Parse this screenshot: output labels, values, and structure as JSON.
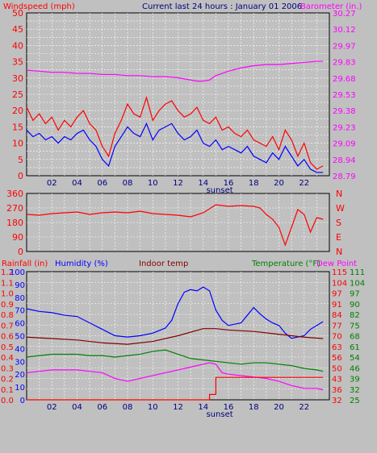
{
  "header": {
    "left_title": "Windspeed (mph)",
    "center_title": "Current last 24 hours : January 01 2006",
    "right_title": "Barometer (in.)"
  },
  "colors": {
    "bg": "#c0c0c0",
    "plot_bg": "#c0c0c0",
    "grid": "#ffffff",
    "frame": "#000000",
    "red": "#ff0000",
    "blue": "#0000ff",
    "magenta": "#ff00ff",
    "darkred": "#800000",
    "green": "#008000",
    "darkblue": "#000080"
  },
  "x_ticks": [
    "02",
    "04",
    "06",
    "08",
    "10",
    "12",
    "14",
    "16",
    "18",
    "20",
    "22"
  ],
  "sunset_label": "sunset",
  "chart_data": [
    {
      "type": "line",
      "name": "wind-barometer",
      "left_axis": {
        "label": "Windspeed (mph)",
        "ticks": [
          0,
          2.5,
          5,
          7.5,
          10,
          12.5,
          15,
          17.5,
          20,
          22.5,
          25,
          27.5,
          30,
          32.5,
          35,
          37.5,
          40,
          42.5,
          45,
          47.5,
          50
        ],
        "tick_labels": [
          "0",
          "5",
          "10",
          "15",
          "20",
          "25",
          "30",
          "35",
          "40",
          "45",
          "50"
        ],
        "ylim": [
          0,
          50
        ]
      },
      "right_axis": {
        "label": "Barometer (in.)",
        "tick_labels": [
          "28.79",
          "28.94",
          "29.09",
          "29.23",
          "29.38",
          "29.53",
          "29.68",
          "29.83",
          "29.97",
          "30.12",
          "30.27"
        ],
        "ylim": [
          28.79,
          30.27
        ]
      },
      "series": [
        {
          "name": "Windspeed (mph)",
          "color": "red",
          "axis": "left",
          "x": [
            0,
            0.5,
            1,
            1.5,
            2,
            2.5,
            3,
            3.5,
            4,
            4.5,
            5,
            5.5,
            6,
            6.5,
            7,
            7.5,
            8,
            8.5,
            9,
            9.5,
            10,
            10.5,
            11,
            11.5,
            12,
            12.5,
            13,
            13.5,
            14,
            14.5,
            15,
            15.5,
            16,
            16.5,
            17,
            17.5,
            18,
            18.5,
            19,
            19.5,
            20,
            20.5,
            21,
            21.5,
            22,
            22.5,
            23,
            23.5
          ],
          "values": [
            21,
            17,
            19,
            16,
            18,
            14,
            17,
            15,
            18,
            20,
            16,
            14,
            9,
            6,
            13,
            17,
            22,
            19,
            18,
            24,
            17,
            20,
            22,
            23,
            20,
            18,
            19,
            21,
            17,
            16,
            18,
            14,
            15,
            13,
            12,
            14,
            11,
            10,
            9,
            12,
            8,
            14,
            11,
            6,
            10,
            4,
            2,
            3
          ]
        },
        {
          "name": "Windspeed (mph)",
          "color": "blue",
          "axis": "left",
          "x": [
            0,
            0.5,
            1,
            1.5,
            2,
            2.5,
            3,
            3.5,
            4,
            4.5,
            5,
            5.5,
            6,
            6.5,
            7,
            7.5,
            8,
            8.5,
            9,
            9.5,
            10,
            10.5,
            11,
            11.5,
            12,
            12.5,
            13,
            13.5,
            14,
            14.5,
            15,
            15.5,
            16,
            16.5,
            17,
            17.5,
            18,
            18.5,
            19,
            19.5,
            20,
            20.5,
            21,
            21.5,
            22,
            22.5,
            23,
            23.5
          ],
          "values": [
            14,
            12,
            13,
            11,
            12,
            10,
            12,
            11,
            13,
            14,
            11,
            9,
            5,
            3,
            9,
            12,
            15,
            13,
            12,
            16,
            11,
            14,
            15,
            16,
            13,
            11,
            12,
            14,
            10,
            9,
            11,
            8,
            9,
            8,
            7,
            9,
            6,
            5,
            4,
            7,
            5,
            9,
            6,
            3,
            5,
            2,
            1,
            1
          ]
        },
        {
          "name": "Barometer (in.)",
          "color": "magenta",
          "axis": "right",
          "x": [
            0,
            1,
            2,
            3,
            4,
            5,
            6,
            7,
            8,
            9,
            10,
            11,
            12,
            13,
            13.5,
            14,
            14.5,
            15,
            16,
            17,
            18,
            19,
            20,
            21,
            22,
            23,
            23.5
          ],
          "values": [
            29.75,
            29.74,
            29.73,
            29.73,
            29.72,
            29.72,
            29.71,
            29.71,
            29.7,
            29.7,
            29.69,
            29.69,
            29.68,
            29.66,
            29.65,
            29.65,
            29.66,
            29.7,
            29.74,
            29.77,
            29.79,
            29.8,
            29.8,
            29.81,
            29.82,
            29.83,
            29.83
          ]
        }
      ]
    },
    {
      "type": "line",
      "name": "wind-direction",
      "left_axis": {
        "tick_labels": [
          "0",
          "90",
          "180",
          "270",
          "360"
        ],
        "ylim": [
          0,
          360
        ]
      },
      "right_axis": {
        "tick_labels": [
          "N",
          "E",
          "S",
          "W",
          "N"
        ]
      },
      "series": [
        {
          "name": "Wind direction",
          "color": "red",
          "x": [
            0,
            1,
            2,
            3,
            4,
            5,
            6,
            7,
            8,
            9,
            10,
            11,
            12,
            13,
            14,
            15,
            16,
            17,
            18,
            18.5,
            19,
            19.5,
            20,
            20.5,
            21,
            21.5,
            22,
            22.5,
            23,
            23.5
          ],
          "values": [
            230,
            225,
            235,
            240,
            245,
            230,
            240,
            245,
            240,
            250,
            235,
            230,
            225,
            215,
            240,
            290,
            280,
            285,
            280,
            270,
            230,
            200,
            150,
            40,
            150,
            260,
            230,
            120,
            210,
            200
          ]
        }
      ]
    },
    {
      "type": "line",
      "name": "rain-humidity-temp",
      "axes": {
        "rainfall": {
          "label": "Rainfall (in)",
          "tick_labels": [
            "0.0",
            "0.1",
            "0.2",
            "0.3",
            "0.4",
            "0.5",
            "0.6",
            "0.7",
            "0.8",
            "0.9",
            "1.0",
            "1.1",
            "1.2"
          ],
          "ylim": [
            0,
            1.2
          ]
        },
        "humidity": {
          "label": "Humidity (%)",
          "tick_labels": [
            "0",
            "10",
            "20",
            "30",
            "40",
            "50",
            "60",
            "70",
            "80",
            "90",
            "100"
          ],
          "ylim": [
            0,
            100
          ]
        },
        "temperature": {
          "label": "Temperature (°F)",
          "tick_labels": [
            "25",
            "32",
            "39",
            "46",
            "54",
            "61",
            "68",
            "75",
            "82",
            "90",
            "97",
            "104",
            "111"
          ],
          "ylim": [
            25,
            115
          ]
        },
        "dewpoint": {
          "label": "Dew Point",
          "tick_labels": [
            "32",
            "36",
            "43",
            "50",
            "56",
            "63",
            "70",
            "77",
            "84",
            "91",
            "97",
            "104",
            "115"
          ]
        }
      },
      "indoor_label": "Indoor temp",
      "series": [
        {
          "name": "Humidity (%)",
          "color": "blue",
          "x": [
            0,
            1,
            2,
            3,
            4,
            5,
            6,
            7,
            8,
            9,
            10,
            11,
            11.5,
            12,
            12.5,
            13,
            13.5,
            14,
            14.5,
            15,
            15.5,
            16,
            17,
            17.5,
            18,
            18.5,
            19,
            19.5,
            20,
            20.5,
            21,
            22,
            22.5,
            23,
            23.5
          ],
          "values": [
            71,
            69,
            68,
            66,
            65,
            60,
            55,
            50,
            49,
            50,
            52,
            56,
            62,
            75,
            84,
            86,
            85,
            88,
            85,
            70,
            62,
            58,
            60,
            66,
            72,
            67,
            63,
            60,
            58,
            52,
            48,
            50,
            55,
            58,
            61
          ]
        },
        {
          "name": "Temperature (°F)",
          "color": "green",
          "x": [
            0,
            1,
            2,
            3,
            4,
            5,
            6,
            7,
            8,
            9,
            10,
            11,
            12,
            13,
            14,
            15,
            16,
            17,
            18,
            19,
            20,
            21,
            22,
            23,
            23.5
          ],
          "values": [
            55,
            56,
            57,
            57,
            57,
            56,
            56,
            55,
            56,
            57,
            59,
            60,
            57,
            54,
            53,
            52,
            51,
            50,
            51,
            51,
            50,
            49,
            47,
            46,
            45
          ]
        },
        {
          "name": "Indoor temp",
          "color": "darkred",
          "x": [
            0,
            2,
            4,
            6,
            8,
            10,
            12,
            14,
            15,
            16,
            18,
            20,
            22,
            23.5
          ],
          "values": [
            69,
            68,
            67,
            65,
            64,
            66,
            70,
            75,
            75,
            74,
            73,
            71,
            69,
            68
          ]
        },
        {
          "name": "Dew Point",
          "color": "magenta",
          "x": [
            0,
            1,
            2,
            3,
            4,
            5,
            6,
            7,
            8,
            9,
            10,
            11,
            12,
            13,
            14,
            14.5,
            15,
            15.5,
            16,
            17,
            18,
            19,
            20,
            21,
            22,
            23,
            23.5
          ],
          "values": [
            44,
            45,
            46,
            46,
            46,
            45,
            44,
            40,
            38,
            40,
            42,
            44,
            46,
            48,
            50,
            51,
            50,
            44,
            43,
            42,
            41,
            40,
            38,
            35,
            33,
            33,
            32
          ]
        },
        {
          "name": "Rainfall (in)",
          "color": "red",
          "x": [
            0,
            14.4,
            14.5,
            15,
            23.5
          ],
          "values": [
            0,
            0,
            0.05,
            0.21,
            0.21
          ]
        }
      ]
    }
  ]
}
